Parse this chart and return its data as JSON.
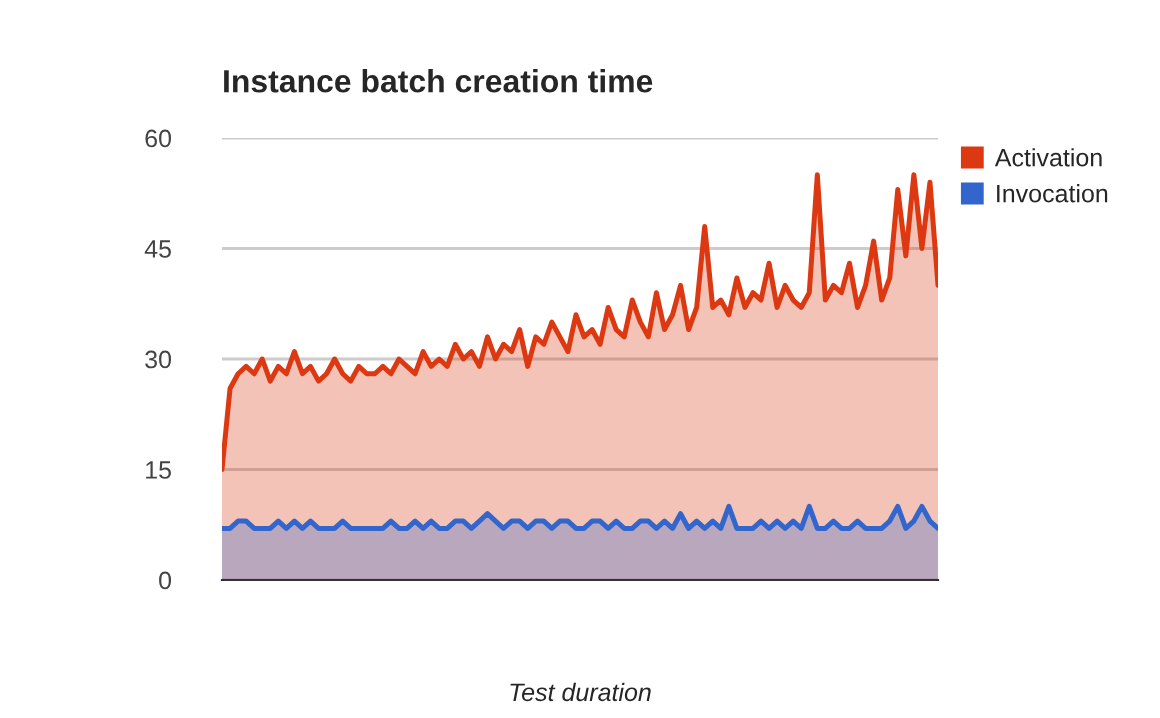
{
  "chart_data": {
    "type": "area",
    "title": "Instance batch creation time",
    "xlabel": "Test duration",
    "categories": [
      null,
      null,
      null,
      null,
      null,
      null,
      null,
      null,
      null,
      null,
      null,
      null,
      null,
      null,
      null,
      null,
      null,
      null,
      null,
      null,
      null,
      null,
      null,
      null,
      null,
      null,
      null,
      null,
      null,
      null,
      null,
      null,
      null,
      null,
      null,
      null,
      null,
      null,
      null,
      null,
      null,
      null,
      null,
      null,
      null,
      null,
      null,
      null,
      null,
      null,
      null,
      null,
      null,
      null,
      null,
      null,
      null,
      null,
      null,
      null,
      null,
      null,
      null,
      null,
      null,
      null,
      null,
      null,
      null,
      null,
      null,
      null,
      null,
      null,
      null,
      null,
      null,
      null,
      null,
      null,
      null,
      null,
      null,
      null,
      null,
      null,
      null,
      null,
      null,
      null
    ],
    "series": [
      {
        "name": "Activation",
        "color": "#dc3912",
        "values": [
          15,
          26,
          28,
          29,
          28,
          30,
          27,
          29,
          28,
          31,
          28,
          29,
          27,
          28,
          30,
          28,
          27,
          29,
          28,
          28,
          29,
          28,
          30,
          29,
          28,
          31,
          29,
          30,
          29,
          32,
          30,
          31,
          29,
          33,
          30,
          32,
          31,
          34,
          29,
          33,
          32,
          35,
          33,
          31,
          36,
          33,
          34,
          32,
          37,
          34,
          33,
          38,
          35,
          33,
          39,
          34,
          36,
          40,
          34,
          37,
          48,
          37,
          38,
          36,
          41,
          37,
          39,
          38,
          43,
          37,
          40,
          38,
          37,
          39,
          55,
          38,
          40,
          39,
          43,
          37,
          40,
          46,
          38,
          41,
          53,
          44,
          55,
          45,
          54,
          40
        ]
      },
      {
        "name": "Invocation",
        "color": "#3366cc",
        "values": [
          7,
          7,
          8,
          8,
          7,
          7,
          7,
          8,
          7,
          8,
          7,
          8,
          7,
          7,
          7,
          8,
          7,
          7,
          7,
          7,
          7,
          8,
          7,
          7,
          8,
          7,
          8,
          7,
          7,
          8,
          8,
          7,
          8,
          9,
          8,
          7,
          8,
          8,
          7,
          8,
          8,
          7,
          8,
          8,
          7,
          7,
          8,
          8,
          7,
          8,
          7,
          7,
          8,
          8,
          7,
          8,
          7,
          9,
          7,
          8,
          7,
          8,
          7,
          10,
          7,
          7,
          7,
          8,
          7,
          8,
          7,
          8,
          7,
          10,
          7,
          7,
          8,
          7,
          7,
          8,
          7,
          7,
          7,
          8,
          10,
          7,
          8,
          10,
          8,
          7
        ]
      }
    ],
    "ylim": [
      0,
      60
    ],
    "yticks": [
      0,
      15,
      30,
      45,
      60
    ],
    "grid": "y",
    "legend": "top right"
  }
}
